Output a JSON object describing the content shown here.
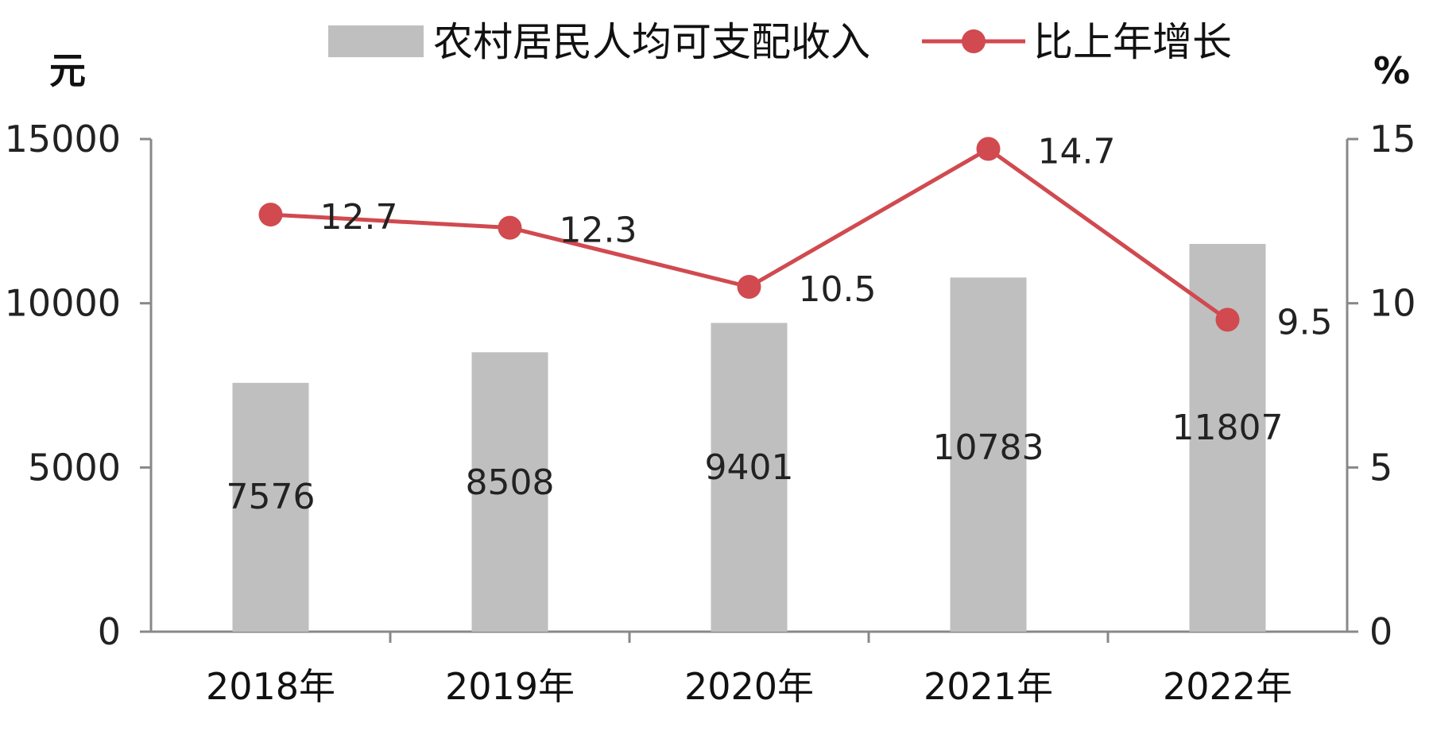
{
  "chart_data": {
    "type": "bar",
    "categories": [
      "2018年",
      "2019年",
      "2020年",
      "2021年",
      "2022年"
    ],
    "series": [
      {
        "name": "农村居民人均可支配收入",
        "type": "bar",
        "axis": "left",
        "values": [
          7576,
          8508,
          9401,
          10783,
          11807
        ],
        "color": "#bfbfbf"
      },
      {
        "name": "比上年增长",
        "type": "line",
        "axis": "right",
        "values": [
          12.7,
          12.3,
          10.5,
          14.7,
          9.5
        ],
        "color": "#d04a4f"
      }
    ],
    "y_left": {
      "unit": "元",
      "ylim": [
        0,
        15000
      ],
      "ticks": [
        "0",
        "5000",
        "10000",
        "15000"
      ]
    },
    "y_right": {
      "unit": "%",
      "ylim": [
        0,
        15
      ],
      "ticks": [
        "0",
        "5",
        "10",
        "15"
      ]
    },
    "bar_labels": [
      "7576",
      "8508",
      "9401",
      "10783",
      "11807"
    ],
    "line_labels": [
      "12.7",
      "12.3",
      "10.5",
      "14.7",
      "9.5"
    ],
    "grid": false,
    "legend": "top"
  }
}
